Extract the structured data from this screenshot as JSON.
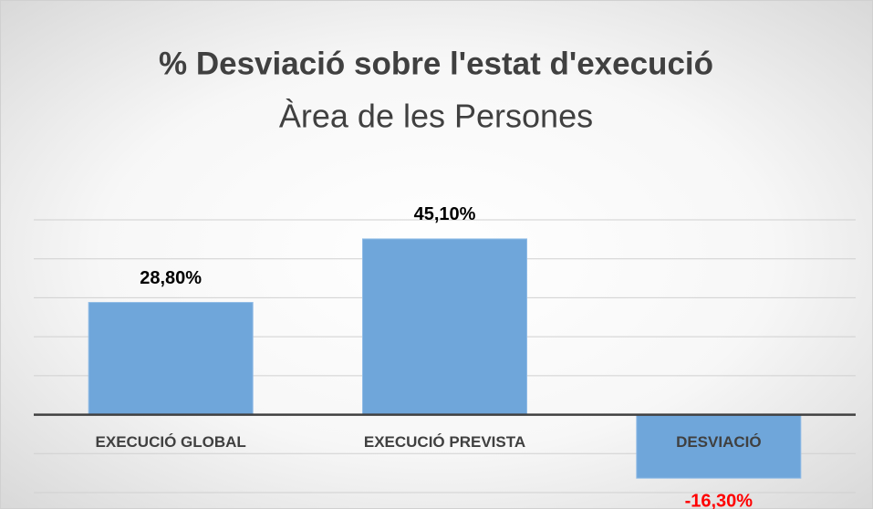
{
  "chart_data": {
    "type": "bar",
    "title": "% Desviació sobre l'estat d'execució",
    "subtitle": "Àrea de les Persones",
    "categories": [
      "EXECUCIÓ GLOBAL",
      "EXECUCIÓ PREVISTA",
      "DESVIACIÓ"
    ],
    "values": [
      28.8,
      45.1,
      -16.3
    ],
    "value_labels": [
      "28,80%",
      "45,10%",
      "-16,30%"
    ],
    "color": "#6fa6da",
    "negative_label_color": "#ff0000",
    "ylim": [
      -20,
      50
    ],
    "yticks": [
      -20,
      -10,
      0,
      10,
      20,
      30,
      40,
      50
    ],
    "grid": true
  }
}
